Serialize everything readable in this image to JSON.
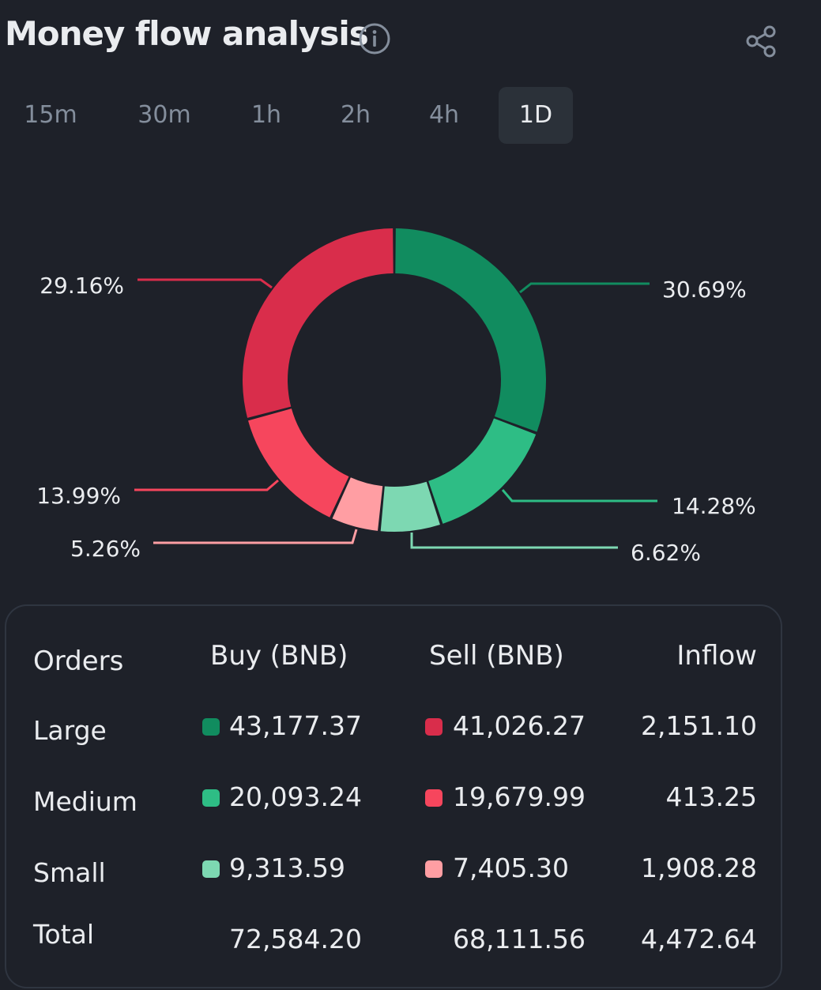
{
  "header": {
    "title": "Money flow analysis",
    "info_icon": "info-icon",
    "share_icon": "share-icon"
  },
  "tabs": [
    {
      "label": "15m",
      "active": false
    },
    {
      "label": "30m",
      "active": false
    },
    {
      "label": "1h",
      "active": false
    },
    {
      "label": "2h",
      "active": false
    },
    {
      "label": "4h",
      "active": false
    },
    {
      "label": "1D",
      "active": true
    }
  ],
  "colors": {
    "large_buy": "#118c5f",
    "medium_buy": "#2ebd85",
    "small_buy": "#7dd8b2",
    "large_sell": "#d92d4b",
    "medium_sell": "#f6465d",
    "small_sell": "#ff9ea3"
  },
  "chart_data": {
    "type": "pie",
    "subtype": "donut",
    "slices": [
      {
        "name": "Large Buy",
        "percent": 30.69,
        "label": "30.69%",
        "color": "#118c5f"
      },
      {
        "name": "Medium Buy",
        "percent": 14.28,
        "label": "14.28%",
        "color": "#2ebd85"
      },
      {
        "name": "Small Buy",
        "percent": 6.62,
        "label": "6.62%",
        "color": "#7dd8b2"
      },
      {
        "name": "Small Sell",
        "percent": 5.26,
        "label": "5.26%",
        "color": "#ff9ea3"
      },
      {
        "name": "Medium Sell",
        "percent": 13.99,
        "label": "13.99%",
        "color": "#f6465d"
      },
      {
        "name": "Large Sell",
        "percent": 29.16,
        "label": "29.16%",
        "color": "#d92d4b"
      }
    ]
  },
  "table": {
    "headers": {
      "orders": "Orders",
      "buy": "Buy (BNB)",
      "sell": "Sell (BNB)",
      "inflow": "Inflow"
    },
    "rows": [
      {
        "order": "Large",
        "buy": "43,177.37",
        "sell": "41,026.27",
        "inflow": "2,151.10",
        "buy_color": "#118c5f",
        "sell_color": "#d92d4b"
      },
      {
        "order": "Medium",
        "buy": "20,093.24",
        "sell": "19,679.99",
        "inflow": "413.25",
        "buy_color": "#2ebd85",
        "sell_color": "#f6465d"
      },
      {
        "order": "Small",
        "buy": "9,313.59",
        "sell": "7,405.30",
        "inflow": "1,908.28",
        "buy_color": "#7dd8b2",
        "sell_color": "#ff9ea3"
      }
    ],
    "total": {
      "order": "Total",
      "buy": "72,584.20",
      "sell": "68,111.56",
      "inflow": "4,472.64"
    }
  }
}
